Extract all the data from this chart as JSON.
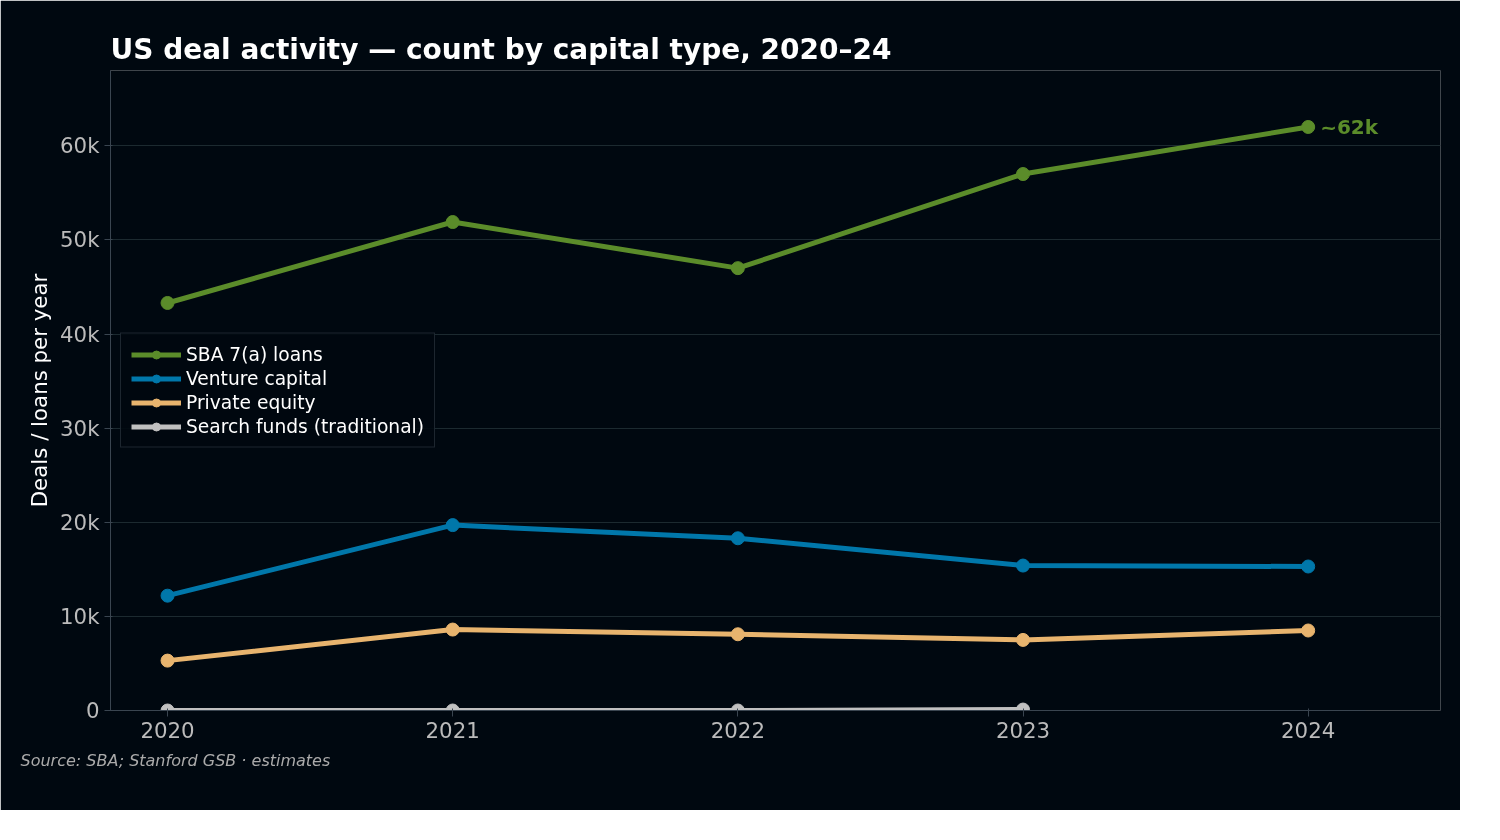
{
  "chart_data": {
    "type": "line",
    "title": "US deal activity — count by capital type, 2020–24",
    "ylabel": "Deals / loans per year",
    "x": [
      2020,
      2021,
      2022,
      2023,
      2024
    ],
    "series": [
      {
        "name": "SBA 7(a) loans",
        "color": "#5b8c2a",
        "values": [
          43300,
          51900,
          47000,
          57000,
          62000
        ]
      },
      {
        "name": "Venture capital",
        "color": "#0077aa",
        "values": [
          12200,
          19700,
          18300,
          15400,
          15300
        ]
      },
      {
        "name": "Private equity",
        "color": "#e8b46e",
        "values": [
          5300,
          8600,
          8100,
          7500,
          8500
        ]
      },
      {
        "name": "Search funds (traditional)",
        "color": "#c0c0c0",
        "values": [
          0,
          0,
          0,
          100,
          null
        ]
      }
    ],
    "xlim": [
      2019.8,
      2024.2
    ],
    "xticks": [
      2020,
      2021,
      2022,
      2023,
      2024
    ],
    "ylim": [
      0,
      68000
    ],
    "yticks": [
      {
        "value": 0,
        "label": "0"
      },
      {
        "value": 10000,
        "label": "10k"
      },
      {
        "value": 20000,
        "label": "20k"
      },
      {
        "value": 30000,
        "label": "30k"
      },
      {
        "value": 40000,
        "label": "40k"
      },
      {
        "value": 50000,
        "label": "50k"
      },
      {
        "value": 60000,
        "label": "60k"
      }
    ],
    "annotations": [
      {
        "text": "~62k",
        "x": 2024,
        "y": 62000
      },
      "Source: SBA; Stanford GSB · estimates"
    ],
    "grid": "y",
    "legend": "left",
    "marker": "circle",
    "line_style": "solid"
  }
}
